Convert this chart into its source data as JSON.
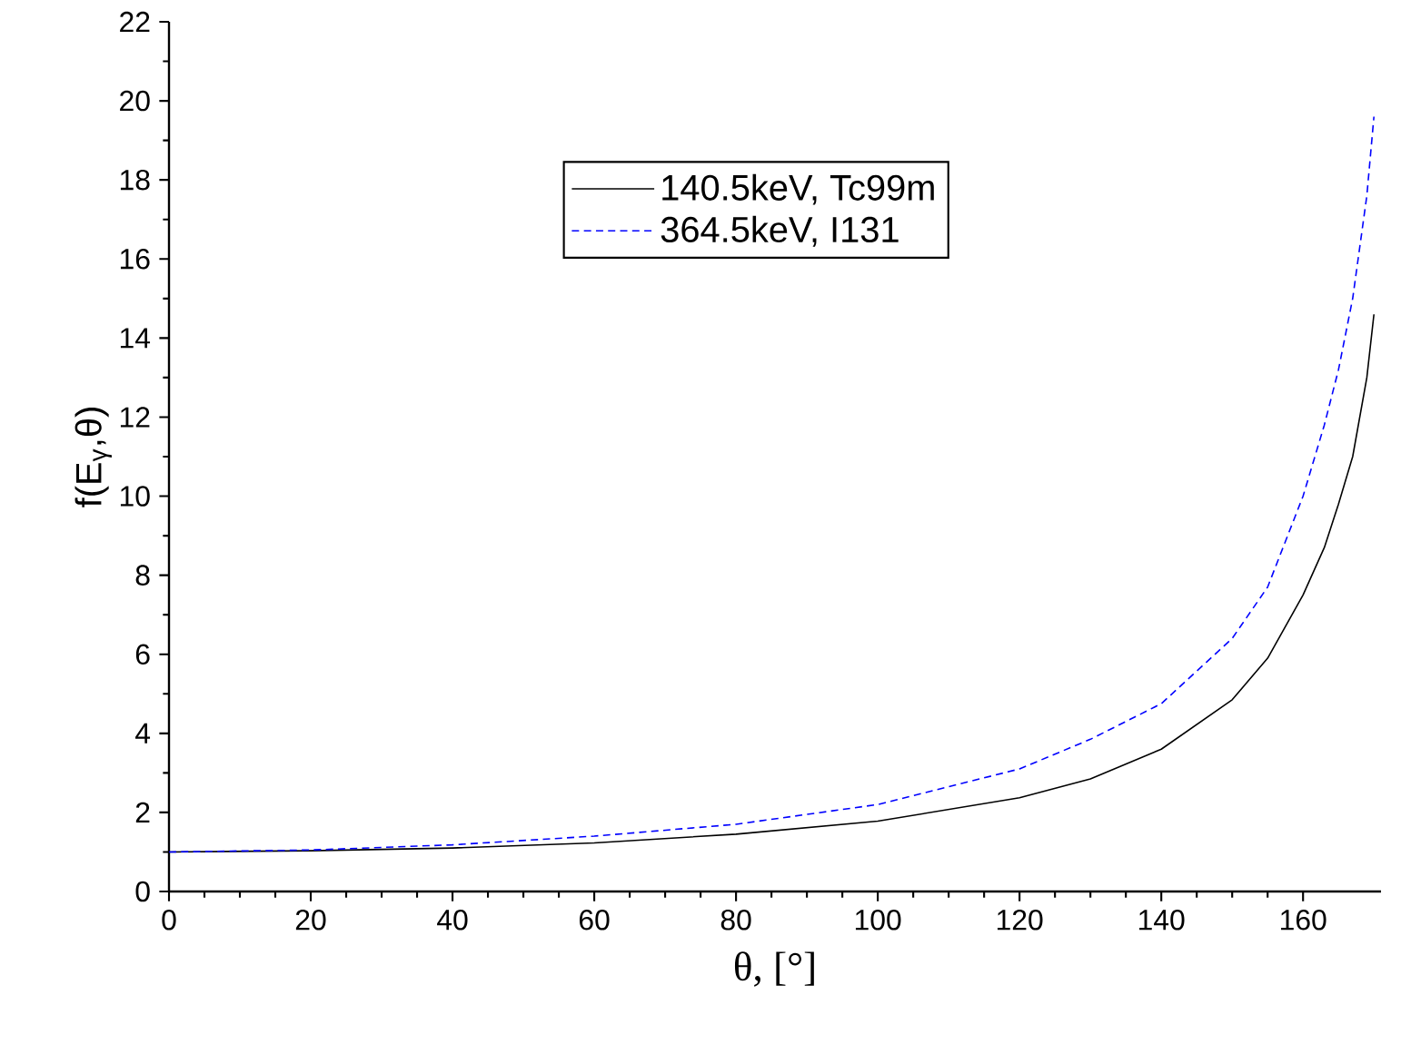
{
  "chart_data": {
    "type": "line",
    "xlabel": "θ, [°]",
    "ylabel": "f(E$_{γ}$,θ)",
    "xlim": [
      0,
      171
    ],
    "ylim": [
      0,
      22
    ],
    "xticks": [
      0,
      20,
      40,
      60,
      80,
      100,
      120,
      140,
      160
    ],
    "yticks": [
      0,
      2,
      4,
      6,
      8,
      10,
      12,
      14,
      16,
      18,
      20,
      22
    ],
    "legend": "top",
    "marker": "none",
    "series": [
      {
        "name": "140.5keV, Tc99m",
        "color": "#000000",
        "line_style": "solid",
        "x": [
          0,
          20,
          40,
          60,
          80,
          100,
          120,
          130,
          140,
          150,
          155,
          160,
          163,
          165,
          167,
          169,
          170
        ],
        "values": [
          1,
          1.03,
          1.1,
          1.23,
          1.45,
          1.78,
          2.37,
          2.85,
          3.6,
          4.85,
          5.9,
          7.5,
          8.7,
          9.8,
          11,
          13,
          14.6
        ]
      },
      {
        "name": "364.5keV, I131",
        "color": "#0000ff",
        "line_style": "dashed",
        "x": [
          0,
          20,
          40,
          60,
          80,
          100,
          120,
          130,
          140,
          150,
          155,
          160,
          163,
          165,
          167,
          169,
          170
        ],
        "values": [
          1,
          1.05,
          1.18,
          1.4,
          1.7,
          2.2,
          3.1,
          3.85,
          4.75,
          6.4,
          7.7,
          10,
          11.8,
          13.2,
          15,
          17.6,
          19.6
        ]
      }
    ]
  }
}
